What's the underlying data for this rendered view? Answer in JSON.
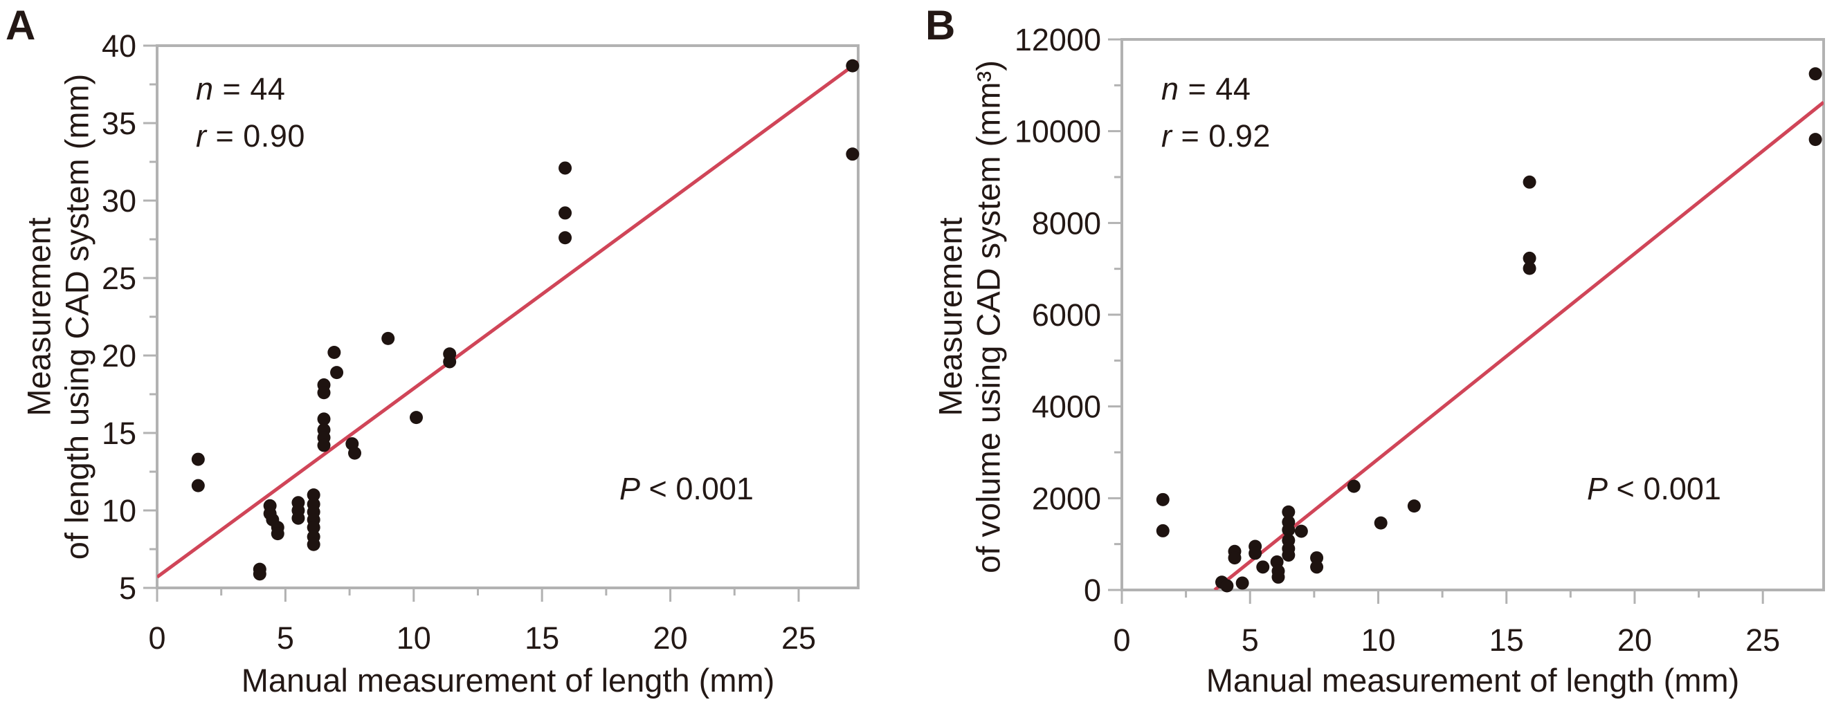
{
  "figure": {
    "panels": [
      {
        "id": "A",
        "corner_label": "A",
        "y_axis_title_line1": "Measurement",
        "y_axis_title_line2": "of length using CAD system (mm)",
        "x_axis_title": "Manual measurement of length (mm)",
        "annotation_n": {
          "symbol": "n",
          "rest": " = 44"
        },
        "annotation_r": {
          "symbol": "r",
          "rest": " = 0.90"
        },
        "annotation_p": {
          "symbol": "P",
          "rest": " < 0.001"
        }
      },
      {
        "id": "B",
        "corner_label": "B",
        "y_axis_title_line1": "Measurement",
        "y_axis_title_line2": "of volume using CAD system (mm³)",
        "x_axis_title": "Manual measurement of length (mm)",
        "annotation_n": {
          "symbol": "n",
          "rest": " = 44"
        },
        "annotation_r": {
          "symbol": "r",
          "rest": " = 0.92"
        },
        "annotation_p": {
          "symbol": "P",
          "rest": " < 0.001"
        }
      }
    ]
  },
  "colors": {
    "text": "#231815",
    "axis": "#b2b2b2",
    "dot": "#1e1310",
    "trend_line": "#d04558",
    "background": "#ffffff"
  },
  "chart_data": [
    {
      "type": "scatter",
      "panel": "A",
      "title": "",
      "xlabel": "Manual measurement of length (mm)",
      "ylabel": "Measurement of length using CAD system (mm)",
      "xlim": [
        0,
        27.32
      ],
      "ylim": [
        5,
        40
      ],
      "x_major_ticks": [
        0,
        5,
        10,
        15,
        20,
        25
      ],
      "x_minor_step": 2.5,
      "y_major_ticks": [
        5,
        10,
        15,
        20,
        25,
        30,
        35,
        40
      ],
      "y_minor_step": 2.5,
      "grid": false,
      "legend": null,
      "stats": {
        "n": 44,
        "r": 0.9,
        "p": "P < 0.001"
      },
      "trend_line": {
        "x1": 0,
        "y1": 5.7,
        "x2": 27.32,
        "y2": 38.95
      },
      "points": [
        [
          1.6,
          13.3
        ],
        [
          1.6,
          11.6
        ],
        [
          4.0,
          6.2
        ],
        [
          4.0,
          5.9
        ],
        [
          4.4,
          10.3
        ],
        [
          4.4,
          9.8
        ],
        [
          4.5,
          9.4
        ],
        [
          4.7,
          8.9
        ],
        [
          4.7,
          8.5
        ],
        [
          5.5,
          10.5
        ],
        [
          5.5,
          10.0
        ],
        [
          5.5,
          9.5
        ],
        [
          6.1,
          11.0
        ],
        [
          6.1,
          10.4
        ],
        [
          6.1,
          9.9
        ],
        [
          6.1,
          9.4
        ],
        [
          6.1,
          8.9
        ],
        [
          6.1,
          8.3
        ],
        [
          6.1,
          7.8
        ],
        [
          6.5,
          18.1
        ],
        [
          6.5,
          17.6
        ],
        [
          6.5,
          15.9
        ],
        [
          6.5,
          15.2
        ],
        [
          6.5,
          14.7
        ],
        [
          6.5,
          14.2
        ],
        [
          6.9,
          20.2
        ],
        [
          7.0,
          18.9
        ],
        [
          7.6,
          14.3
        ],
        [
          7.7,
          13.7
        ],
        [
          9.0,
          21.1
        ],
        [
          10.1,
          16.0
        ],
        [
          11.4,
          20.1
        ],
        [
          11.4,
          19.6
        ],
        [
          15.9,
          32.1
        ],
        [
          15.9,
          29.2
        ],
        [
          15.9,
          27.6
        ],
        [
          27.1,
          38.7
        ],
        [
          27.1,
          33.0
        ]
      ]
    },
    {
      "type": "scatter",
      "panel": "B",
      "title": "",
      "xlabel": "Manual measurement of length (mm)",
      "ylabel": "Measurement of volume using CAD system (mm³)",
      "xlim": [
        0,
        27.37
      ],
      "ylim": [
        0,
        12000
      ],
      "x_major_ticks": [
        0,
        5,
        10,
        15,
        20,
        25
      ],
      "x_minor_step": 2.5,
      "y_major_ticks": [
        0,
        2000,
        4000,
        6000,
        8000,
        10000,
        12000
      ],
      "y_minor_step": 1000,
      "grid": false,
      "legend": null,
      "stats": {
        "n": 44,
        "r": 0.92,
        "p": "P < 0.001"
      },
      "trend_line": {
        "x1": 3.62,
        "y1": 0,
        "x2": 27.37,
        "y2": 10630
      },
      "points": [
        [
          1.6,
          1970
        ],
        [
          1.6,
          1290
        ],
        [
          3.9,
          170
        ],
        [
          4.1,
          90
        ],
        [
          4.4,
          840
        ],
        [
          4.4,
          700
        ],
        [
          4.7,
          150
        ],
        [
          5.2,
          950
        ],
        [
          5.2,
          800
        ],
        [
          5.5,
          500
        ],
        [
          6.05,
          610
        ],
        [
          6.1,
          410
        ],
        [
          6.1,
          280
        ],
        [
          6.5,
          1700
        ],
        [
          6.5,
          1480
        ],
        [
          6.5,
          1310
        ],
        [
          6.5,
          1080
        ],
        [
          6.5,
          900
        ],
        [
          6.5,
          760
        ],
        [
          7.0,
          1280
        ],
        [
          7.6,
          700
        ],
        [
          7.6,
          500
        ],
        [
          9.05,
          2260
        ],
        [
          10.1,
          1460
        ],
        [
          11.4,
          1830
        ],
        [
          15.9,
          8890
        ],
        [
          15.9,
          7230
        ],
        [
          15.9,
          7010
        ],
        [
          27.05,
          11250
        ],
        [
          27.05,
          9820
        ]
      ]
    }
  ]
}
